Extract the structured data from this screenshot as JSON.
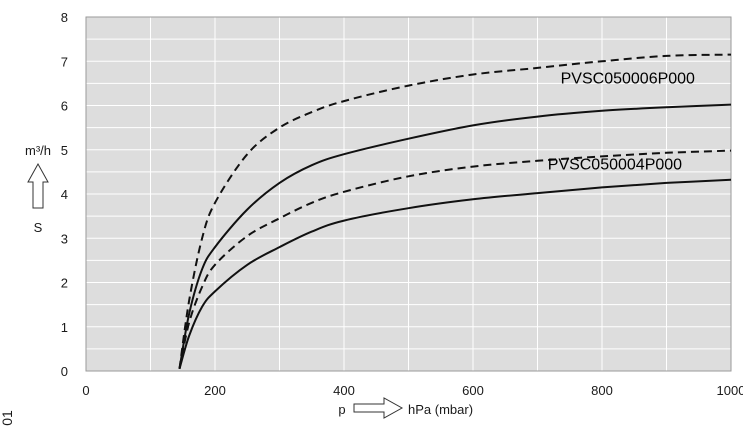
{
  "chart_data": {
    "type": "line",
    "xlim": [
      0,
      1000
    ],
    "ylim": [
      0,
      8
    ],
    "x_ticks": [
      0,
      200,
      400,
      600,
      800,
      1000
    ],
    "y_ticks": [
      0,
      1,
      2,
      3,
      4,
      5,
      6,
      7,
      8
    ],
    "x_label_left": "p",
    "x_label_right": "hPa (mbar)",
    "y_label_top": "m³/h",
    "y_label_bottom": "S",
    "side_text": "01",
    "grid": true,
    "background": "#dddddd",
    "grid_color": "#ffffff",
    "series": [
      {
        "name": "PVSC050006P000",
        "style": "dashed",
        "x": [
          145,
          160,
          180,
          200,
          250,
          300,
          350,
          400,
          500,
          600,
          700,
          800,
          900,
          1000
        ],
        "y": [
          0.05,
          1.6,
          3.0,
          3.8,
          4.9,
          5.5,
          5.85,
          6.1,
          6.45,
          6.7,
          6.85,
          7.0,
          7.12,
          7.15
        ]
      },
      {
        "name": "PVSC050006P000",
        "style": "solid",
        "x": [
          145,
          160,
          180,
          200,
          250,
          300,
          350,
          400,
          500,
          600,
          700,
          800,
          900,
          1000
        ],
        "y": [
          0.05,
          1.3,
          2.3,
          2.8,
          3.65,
          4.25,
          4.65,
          4.9,
          5.25,
          5.55,
          5.75,
          5.88,
          5.96,
          6.02
        ]
      },
      {
        "name": "PVSC050004P000",
        "style": "dashed",
        "x": [
          145,
          160,
          180,
          200,
          250,
          300,
          350,
          400,
          500,
          600,
          700,
          800,
          900,
          1000
        ],
        "y": [
          0.05,
          1.1,
          1.9,
          2.4,
          3.05,
          3.45,
          3.8,
          4.05,
          4.4,
          4.62,
          4.75,
          4.85,
          4.93,
          4.98
        ]
      },
      {
        "name": "PVSC050004P000",
        "style": "solid",
        "x": [
          145,
          160,
          180,
          200,
          250,
          300,
          350,
          400,
          500,
          600,
          700,
          800,
          900,
          1000
        ],
        "y": [
          0.05,
          0.8,
          1.45,
          1.8,
          2.4,
          2.8,
          3.15,
          3.4,
          3.68,
          3.88,
          4.02,
          4.15,
          4.25,
          4.32
        ]
      }
    ],
    "annotations": [
      {
        "text": "PVSC050006P000",
        "x": 840,
        "y": 6.5
      },
      {
        "text": "PVSC050004P000",
        "x": 820,
        "y": 4.55
      }
    ]
  }
}
